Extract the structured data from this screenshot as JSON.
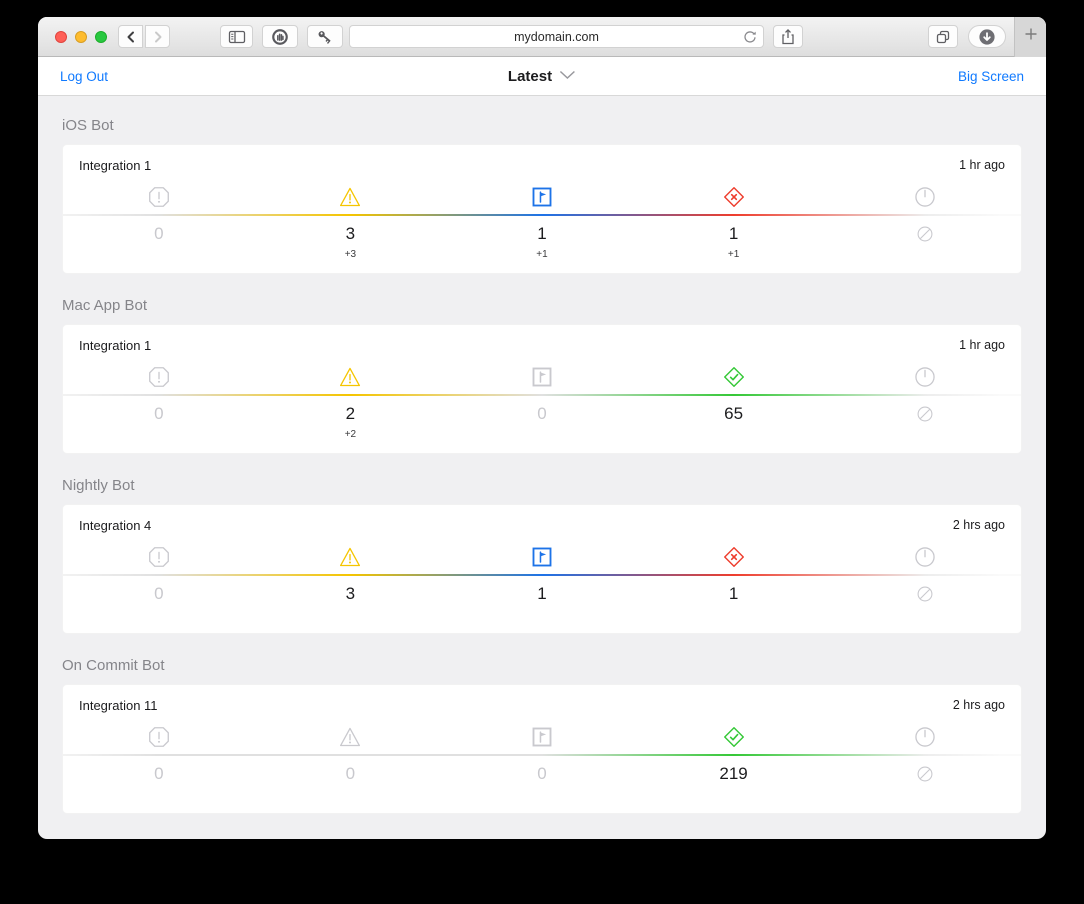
{
  "browser": {
    "url": "mydomain.com"
  },
  "nav": {
    "log_out": "Log Out",
    "title": "Latest",
    "big_screen": "Big Screen"
  },
  "status_colors": {
    "inactive": "#c9c9ce",
    "warning": "#f5c500",
    "analysis": "#1d73e8",
    "failed": "#ee3d2d",
    "passed": "#35c837"
  },
  "bots": [
    {
      "name": "iOS Bot",
      "integration": "Integration 1",
      "time": "1 hr ago",
      "metrics": [
        {
          "kind": "errors",
          "icon": "octagon-exclamation-icon",
          "state": "inactive",
          "value": "0",
          "delta": null
        },
        {
          "kind": "warnings",
          "icon": "warning-triangle-icon",
          "state": "warning",
          "value": "3",
          "delta": "+3"
        },
        {
          "kind": "analysis",
          "icon": "analysis-flag-icon",
          "state": "analysis",
          "value": "1",
          "delta": "+1"
        },
        {
          "kind": "test-failures",
          "icon": "failed-diamond-icon",
          "state": "failed",
          "value": "1",
          "delta": "+1"
        },
        {
          "kind": "duration",
          "icon": "clock-icon",
          "state": "inactive",
          "value": null,
          "delta": null
        }
      ]
    },
    {
      "name": "Mac App Bot",
      "integration": "Integration 1",
      "time": "1 hr ago",
      "metrics": [
        {
          "kind": "errors",
          "icon": "octagon-exclamation-icon",
          "state": "inactive",
          "value": "0",
          "delta": null
        },
        {
          "kind": "warnings",
          "icon": "warning-triangle-icon",
          "state": "warning",
          "value": "2",
          "delta": "+2"
        },
        {
          "kind": "analysis",
          "icon": "analysis-flag-icon",
          "state": "inactive",
          "value": "0",
          "delta": null
        },
        {
          "kind": "tests-passed",
          "icon": "passed-diamond-icon",
          "state": "passed",
          "value": "65",
          "delta": null
        },
        {
          "kind": "duration",
          "icon": "clock-icon",
          "state": "inactive",
          "value": null,
          "delta": null
        }
      ]
    },
    {
      "name": "Nightly Bot",
      "integration": "Integration 4",
      "time": "2 hrs ago",
      "metrics": [
        {
          "kind": "errors",
          "icon": "octagon-exclamation-icon",
          "state": "inactive",
          "value": "0",
          "delta": null
        },
        {
          "kind": "warnings",
          "icon": "warning-triangle-icon",
          "state": "warning",
          "value": "3",
          "delta": null
        },
        {
          "kind": "analysis",
          "icon": "analysis-flag-icon",
          "state": "analysis",
          "value": "1",
          "delta": null
        },
        {
          "kind": "test-failures",
          "icon": "failed-diamond-icon",
          "state": "failed",
          "value": "1",
          "delta": null
        },
        {
          "kind": "duration",
          "icon": "clock-icon",
          "state": "inactive",
          "value": null,
          "delta": null
        }
      ]
    },
    {
      "name": "On Commit Bot",
      "integration": "Integration 11",
      "time": "2 hrs ago",
      "metrics": [
        {
          "kind": "errors",
          "icon": "octagon-exclamation-icon",
          "state": "inactive",
          "value": "0",
          "delta": null
        },
        {
          "kind": "warnings",
          "icon": "warning-triangle-icon",
          "state": "inactive",
          "value": "0",
          "delta": null
        },
        {
          "kind": "analysis",
          "icon": "analysis-flag-icon",
          "state": "inactive",
          "value": "0",
          "delta": null
        },
        {
          "kind": "tests-passed",
          "icon": "passed-diamond-icon",
          "state": "passed",
          "value": "219",
          "delta": null
        },
        {
          "kind": "duration",
          "icon": "clock-icon",
          "state": "inactive",
          "value": null,
          "delta": null
        }
      ]
    }
  ]
}
